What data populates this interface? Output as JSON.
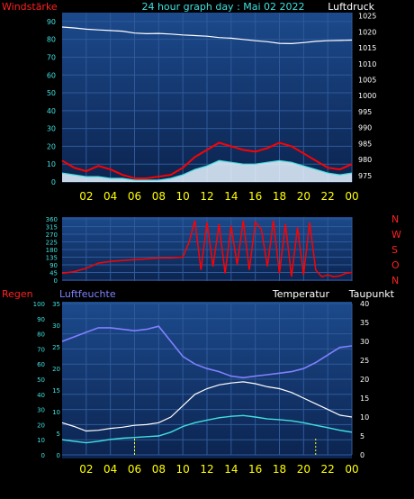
{
  "header": {
    "left_label": "Windstärke",
    "title": "24 hour graph day : Mai 02 2022",
    "right_label": "Luftdruck"
  },
  "colors": {
    "background": "#000000",
    "plot_bg_top": "#1c4a8c",
    "plot_bg_bottom": "#0c2450",
    "grid": "#2f5a9a",
    "wind": "#ff0000",
    "gust_fill": "#e8f4ff",
    "cyan": "#40e0e0",
    "pressure": "#ffffff",
    "humidity": "#8080ff",
    "temperature": "#ffffff",
    "dewpoint": "#40e0e0",
    "yellow": "#ffff00",
    "red_label": "#ff2020",
    "humidity_label": "#8080ff"
  },
  "x_ticks": [
    "02",
    "04",
    "06",
    "08",
    "10",
    "12",
    "14",
    "16",
    "18",
    "20",
    "22",
    "00"
  ],
  "chart_data": [
    {
      "type": "line",
      "title": "24 hour graph day : Mai 02 2022",
      "xlabel": "",
      "ylabel": "Windstärke",
      "y2label": "Luftdruck",
      "x_hours": [
        0,
        1,
        2,
        3,
        4,
        5,
        6,
        7,
        8,
        9,
        10,
        11,
        12,
        13,
        14,
        15,
        16,
        17,
        18,
        19,
        20,
        21,
        22,
        23,
        24
      ],
      "ylim": [
        0,
        95
      ],
      "y_ticks": [
        0,
        10,
        20,
        30,
        40,
        50,
        60,
        70,
        80,
        90
      ],
      "y2lim": [
        973,
        1026
      ],
      "y2_ticks": [
        975,
        980,
        985,
        990,
        995,
        1000,
        1005,
        1010,
        1015,
        1020,
        1025
      ],
      "series": [
        {
          "name": "Windstärke",
          "axis": "left",
          "values": [
            12,
            8,
            6,
            9,
            7,
            4,
            2,
            2,
            3,
            4,
            8,
            14,
            18,
            22,
            20,
            18,
            17,
            19,
            22,
            20,
            16,
            12,
            8,
            7,
            10
          ]
        },
        {
          "name": "Luftdruck",
          "axis": "right",
          "values": [
            1021.5,
            1021.2,
            1020.8,
            1020.6,
            1020.4,
            1020.2,
            1019.6,
            1019.4,
            1019.5,
            1019.3,
            1019.0,
            1018.8,
            1018.6,
            1018.2,
            1018.0,
            1017.6,
            1017.2,
            1016.9,
            1016.4,
            1016.3,
            1016.6,
            1017.0,
            1017.2,
            1017.3,
            1017.4
          ]
        },
        {
          "name": "",
          "axis": "left",
          "values": [
            5,
            4,
            3,
            3,
            2,
            2,
            1,
            1,
            1,
            2,
            4,
            7,
            9,
            12,
            11,
            10,
            10,
            11,
            12,
            11,
            9,
            7,
            5,
            4,
            5
          ]
        }
      ]
    },
    {
      "type": "line",
      "xlabel": "",
      "ylabel": "",
      "x_hours": [
        0,
        1,
        2,
        3,
        4,
        5,
        6,
        7,
        8,
        9,
        10,
        10.5,
        11,
        11.5,
        12,
        12.5,
        13,
        13.5,
        14,
        14.5,
        15,
        15.5,
        16,
        16.5,
        17,
        17.5,
        18,
        18.5,
        19,
        19.5,
        20,
        20.5,
        21,
        21.5,
        22,
        22.5,
        23,
        23.5,
        24
      ],
      "ylim": [
        0,
        360
      ],
      "y_ticks": [
        0,
        45,
        90,
        135,
        180,
        225,
        270,
        315,
        360
      ],
      "right_labels": [
        "N",
        "W",
        "S",
        "O",
        "N"
      ],
      "series": [
        {
          "name": "",
          "values": [
            40,
            50,
            70,
            100,
            110,
            115,
            120,
            125,
            130,
            130,
            135,
            220,
            350,
            60,
            340,
            80,
            330,
            40,
            320,
            90,
            350,
            60,
            340,
            300,
            80,
            350,
            40,
            330,
            20,
            310,
            30,
            340,
            60,
            20,
            30,
            20,
            25,
            40,
            45
          ]
        }
      ]
    },
    {
      "type": "line",
      "xlabel": "",
      "ylabel": "Regen",
      "y2label": "Luftfeuchte",
      "x_hours": [
        0,
        1,
        2,
        3,
        4,
        5,
        6,
        7,
        8,
        9,
        10,
        11,
        12,
        13,
        14,
        15,
        16,
        17,
        18,
        19,
        20,
        21,
        22,
        23,
        24
      ],
      "ylim": [
        0,
        100
      ],
      "y_ticks": [
        0,
        10,
        20,
        30,
        40,
        50,
        60,
        70,
        80,
        90,
        100
      ],
      "humidity_ticks": [
        0,
        5,
        10,
        15,
        20,
        25,
        30,
        35
      ],
      "right_label_a": "Temperatur",
      "right_label_b": "Taupunkt",
      "right_ticks": [
        0,
        5,
        10,
        15,
        20,
        25,
        30,
        35,
        40
      ],
      "right_lim": [
        0,
        40
      ],
      "series": [
        {
          "name": "Luftfeuchte",
          "values": [
            75,
            78,
            81,
            84,
            84,
            83,
            82,
            83,
            85,
            75,
            65,
            60,
            57,
            55,
            52,
            51,
            52,
            53,
            54,
            55,
            57,
            61,
            66,
            71,
            72
          ]
        },
        {
          "name": "Temperatur",
          "values": [
            8.5,
            7.5,
            6.3,
            6.5,
            7.0,
            7.3,
            7.8,
            8.0,
            8.5,
            10,
            13,
            16,
            17.5,
            18.5,
            19,
            19.3,
            18.8,
            18,
            17.5,
            16.5,
            15,
            13.5,
            12,
            10.5,
            10
          ]
        },
        {
          "name": "Taupunkt",
          "values": [
            4.0,
            3.6,
            3.2,
            3.6,
            4.1,
            4.4,
            4.6,
            4.8,
            5.0,
            6,
            7.5,
            8.5,
            9.2,
            9.8,
            10.2,
            10.4,
            10.0,
            9.5,
            9.3,
            9.0,
            8.5,
            7.8,
            7.2,
            6.5,
            6.0
          ]
        }
      ]
    }
  ]
}
